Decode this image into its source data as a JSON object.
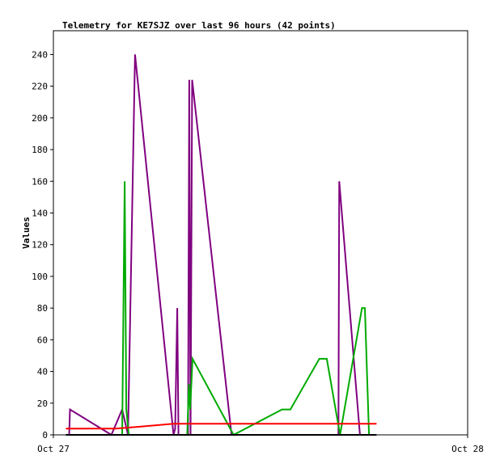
{
  "chart_data": {
    "type": "line",
    "title": "Telemetry for KE7SJZ over last 96 hours (42 points)",
    "xlabel": "",
    "ylabel": "Values",
    "xlim": [
      "Oct 27",
      "Oct 28"
    ],
    "x_ticks": [
      "Oct 27",
      "Oct 28"
    ],
    "ylim": [
      0,
      255
    ],
    "y_ticks": [
      0,
      20,
      40,
      60,
      80,
      100,
      120,
      140,
      160,
      180,
      200,
      220,
      240
    ],
    "grid": false,
    "legend": "none",
    "series": [
      {
        "color": "#800080",
        "points": [
          [
            0.038,
            0
          ],
          [
            0.04,
            16
          ],
          [
            0.14,
            0
          ],
          [
            0.166,
            16
          ],
          [
            0.18,
            0
          ],
          [
            0.197,
            240
          ],
          [
            0.29,
            0
          ],
          [
            0.294,
            4
          ],
          [
            0.299,
            80
          ],
          [
            0.302,
            0
          ],
          [
            0.325,
            0
          ],
          [
            0.328,
            224
          ],
          [
            0.331,
            0
          ],
          [
            0.335,
            224
          ],
          [
            0.43,
            0
          ],
          [
            0.688,
            0
          ],
          [
            0.69,
            160
          ],
          [
            0.74,
            0
          ]
        ],
        "color_name": "purple"
      },
      {
        "color": "#00aa00",
        "points": [
          [
            0.166,
            0
          ],
          [
            0.172,
            160
          ],
          [
            0.176,
            16
          ],
          [
            0.182,
            0
          ],
          [
            0.323,
            0
          ],
          [
            0.327,
            32
          ],
          [
            0.33,
            16
          ],
          [
            0.336,
            48
          ],
          [
            0.435,
            0
          ],
          [
            0.552,
            16
          ],
          [
            0.572,
            16
          ],
          [
            0.642,
            48
          ],
          [
            0.66,
            48
          ],
          [
            0.692,
            0
          ],
          [
            0.745,
            80
          ],
          [
            0.752,
            80
          ],
          [
            0.762,
            0
          ]
        ],
        "color_name": "green"
      },
      {
        "color": "#ff0000",
        "points": [
          [
            0.03,
            4
          ],
          [
            0.1,
            4
          ],
          [
            0.15,
            4
          ],
          [
            0.2,
            5
          ],
          [
            0.29,
            7
          ],
          [
            0.4,
            7
          ],
          [
            0.5,
            7
          ],
          [
            0.6,
            7
          ],
          [
            0.7,
            7
          ],
          [
            0.78,
            7
          ]
        ],
        "color_name": "red"
      },
      {
        "color": "#000000",
        "points": [
          [
            0.03,
            0
          ],
          [
            0.78,
            0
          ]
        ],
        "color_name": "black"
      }
    ]
  }
}
